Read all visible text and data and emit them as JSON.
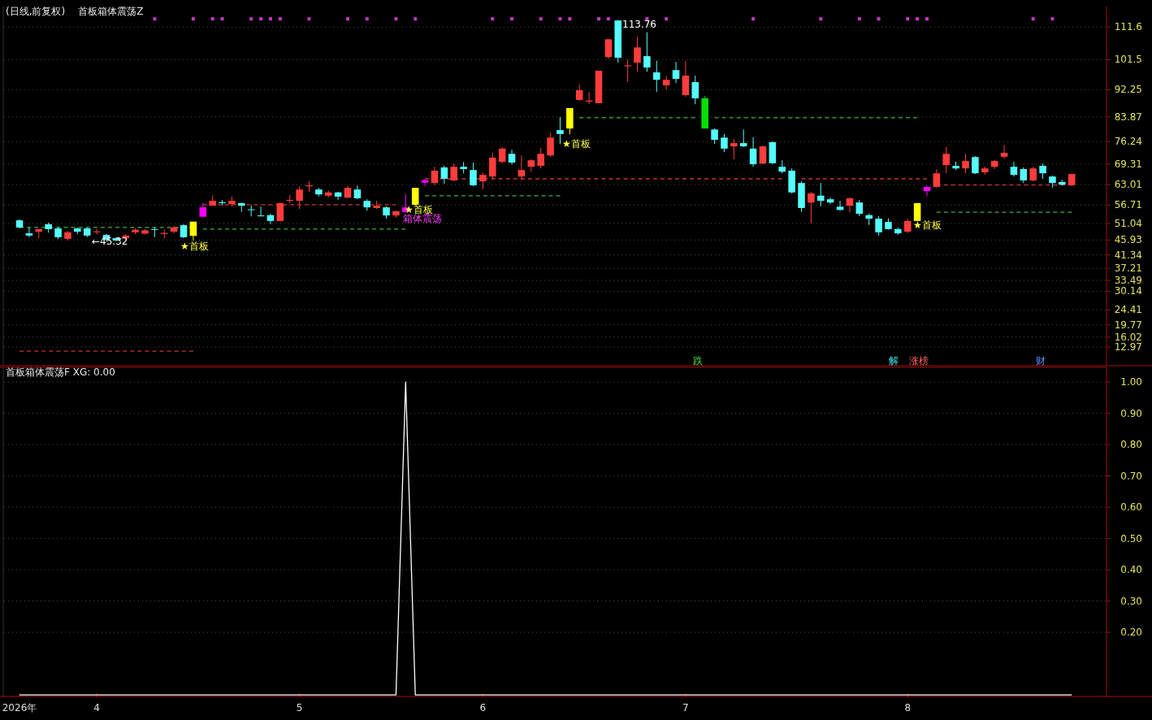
{
  "chart_data": [
    {
      "type": "candlestick",
      "subtitle": "(日线,前复权)",
      "title": "首板箱体震荡Z",
      "ohlc": [
        [
          52.0,
          52.3,
          49.5,
          49.8
        ],
        [
          48.0,
          49.8,
          46.8,
          47.3
        ],
        [
          48.5,
          49.3,
          46.5,
          49.3
        ],
        [
          50.8,
          51.3,
          48.2,
          49.3
        ],
        [
          49.5,
          50.0,
          46.3,
          46.8
        ],
        [
          46.3,
          48.8,
          45.8,
          48.3
        ],
        [
          49.5,
          49.8,
          47.7,
          48.5
        ],
        [
          49.5,
          49.8,
          46.8,
          47.3
        ],
        [
          48.4,
          49.3,
          47.7,
          48.6
        ],
        [
          47.5,
          47.8,
          45.32,
          46.0
        ],
        [
          46.5,
          46.8,
          45.5,
          45.8
        ],
        [
          46.5,
          47.8,
          45.8,
          47.3
        ],
        [
          48.3,
          49.6,
          47.7,
          49.1
        ],
        [
          47.9,
          49.3,
          47.7,
          48.9
        ],
        [
          49.3,
          49.8,
          46.8,
          49.1
        ],
        [
          47.8,
          49.1,
          46.5,
          48.1
        ],
        [
          48.5,
          50.3,
          48.0,
          49.8
        ],
        [
          50.5,
          50.8,
          46.5,
          46.8
        ],
        [
          47.2,
          51.6,
          45.7,
          51.6
        ],
        [
          53.1,
          57.3,
          53.1,
          56.0
        ],
        [
          56.5,
          59.7,
          56.5,
          58.0
        ],
        [
          57.6,
          58.3,
          56.6,
          57.3
        ],
        [
          57.0,
          59.3,
          56.3,
          58.0
        ],
        [
          57.3,
          57.5,
          54.6,
          56.5
        ],
        [
          55.4,
          56.6,
          53.2,
          55.2
        ],
        [
          53.5,
          56.2,
          53.2,
          53.3
        ],
        [
          53.6,
          54.0,
          50.8,
          51.8
        ],
        [
          51.8,
          57.5,
          51.6,
          57.3
        ],
        [
          58.0,
          59.8,
          57.3,
          58.3
        ],
        [
          58.0,
          62.5,
          55.5,
          61.5
        ],
        [
          62.5,
          64.0,
          60.8,
          62.8
        ],
        [
          61.5,
          62.0,
          59.4,
          60.0
        ],
        [
          59.6,
          61.2,
          59.0,
          60.6
        ],
        [
          60.6,
          60.8,
          58.3,
          59.3
        ],
        [
          59.0,
          62.7,
          58.8,
          62.0
        ],
        [
          61.5,
          62.7,
          58.5,
          58.8
        ],
        [
          58.0,
          58.5,
          55.0,
          56.0
        ],
        [
          55.8,
          58.0,
          55.5,
          56.5
        ],
        [
          56.0,
          56.3,
          52.5,
          53.5
        ],
        [
          53.5,
          55.0,
          52.8,
          54.8
        ],
        [
          54.6,
          60.0,
          54.4,
          56.0
        ],
        [
          56.8,
          62.0,
          56.4,
          62.0
        ],
        [
          63.6,
          64.8,
          62.5,
          64.4
        ],
        [
          63.5,
          68.5,
          62.8,
          67.3
        ],
        [
          68.3,
          68.8,
          63.3,
          64.8
        ],
        [
          64.3,
          69.5,
          64.0,
          68.5
        ],
        [
          68.5,
          70.0,
          66.5,
          67.8
        ],
        [
          67.5,
          69.8,
          62.5,
          62.8
        ],
        [
          64.0,
          66.7,
          61.5,
          66.0
        ],
        [
          65.5,
          72.8,
          64.8,
          71.3
        ],
        [
          70.0,
          74.6,
          69.5,
          74.1
        ],
        [
          72.5,
          73.8,
          69.2,
          69.8
        ],
        [
          65.5,
          72.0,
          64.5,
          67.5
        ],
        [
          68.5,
          70.8,
          67.0,
          70.5
        ],
        [
          68.8,
          74.3,
          68.0,
          72.5
        ],
        [
          72.0,
          79.0,
          71.6,
          77.5
        ],
        [
          79.8,
          83.8,
          75.5,
          78.6
        ],
        [
          80.3,
          86.6,
          78.5,
          86.6
        ],
        [
          89.1,
          93.8,
          88.8,
          92.1
        ],
        [
          88.6,
          91.5,
          87.8,
          88.9
        ],
        [
          88.1,
          98.1,
          88.1,
          98.1
        ],
        [
          102.3,
          108.0,
          101.8,
          107.8
        ],
        [
          113.6,
          113.76,
          100.6,
          102.1
        ],
        [
          99.5,
          101.6,
          94.7,
          99.8
        ],
        [
          100.6,
          108.5,
          97.8,
          105.3
        ],
        [
          102.6,
          110.0,
          97.8,
          99.1
        ],
        [
          97.6,
          101.2,
          91.6,
          95.3
        ],
        [
          93.6,
          96.5,
          92.3,
          95.3
        ],
        [
          98.3,
          100.8,
          94.3,
          95.6
        ],
        [
          90.6,
          101.2,
          90.1,
          96.6
        ],
        [
          94.6,
          96.6,
          87.8,
          89.6
        ],
        [
          89.6,
          90.3,
          80.3,
          80.3
        ],
        [
          80.0,
          80.3,
          75.5,
          76.8
        ],
        [
          77.5,
          78.6,
          73.0,
          74.1
        ],
        [
          74.8,
          77.1,
          70.8,
          75.8
        ],
        [
          75.8,
          80.0,
          74.6,
          74.8
        ],
        [
          74.1,
          77.6,
          68.5,
          69.3
        ],
        [
          69.5,
          75.0,
          69.3,
          74.8
        ],
        [
          76.1,
          76.3,
          69.3,
          69.6
        ],
        [
          68.5,
          70.5,
          66.5,
          67.0
        ],
        [
          67.3,
          68.0,
          60.3,
          60.6
        ],
        [
          63.5,
          64.0,
          54.6,
          55.8
        ],
        [
          57.5,
          60.8,
          51.0,
          60.3
        ],
        [
          59.6,
          63.5,
          56.3,
          58.0
        ],
        [
          58.5,
          59.0,
          57.0,
          57.5
        ],
        [
          56.2,
          58.0,
          55.0,
          55.2
        ],
        [
          56.5,
          59.0,
          54.5,
          58.8
        ],
        [
          57.5,
          58.3,
          53.3,
          54.0
        ],
        [
          53.6,
          54.1,
          50.6,
          52.5
        ],
        [
          52.5,
          53.3,
          47.3,
          48.3
        ],
        [
          51.5,
          52.6,
          49.1,
          49.3
        ],
        [
          49.3,
          49.8,
          47.5,
          48.0
        ],
        [
          48.5,
          52.5,
          48.1,
          51.8
        ],
        [
          51.8,
          57.3,
          51.8,
          57.3
        ],
        [
          61.0,
          62.7,
          59.4,
          62.3
        ],
        [
          62.3,
          67.8,
          62.1,
          66.5
        ],
        [
          69.0,
          74.6,
          66.5,
          72.5
        ],
        [
          68.8,
          70.1,
          67.5,
          68.0
        ],
        [
          68.0,
          72.5,
          66.6,
          70.3
        ],
        [
          71.5,
          71.8,
          66.3,
          66.5
        ],
        [
          66.8,
          68.6,
          66.0,
          68.0
        ],
        [
          68.5,
          70.6,
          67.8,
          70.3
        ],
        [
          71.6,
          75.2,
          71.0,
          72.8
        ],
        [
          68.5,
          70.0,
          65.5,
          66.0
        ],
        [
          67.8,
          68.3,
          63.5,
          64.3
        ],
        [
          64.3,
          68.5,
          64.0,
          68.0
        ],
        [
          68.8,
          69.5,
          64.8,
          66.5
        ],
        [
          65.5,
          65.8,
          62.1,
          63.5
        ],
        [
          63.8,
          64.5,
          62.8,
          63.0
        ],
        [
          62.8,
          66.3,
          62.6,
          66.3
        ]
      ],
      "colors": [
        "#54fcfc",
        "#54fcfc",
        "#ff3c3c",
        "#54fcfc",
        "#54fcfc",
        "#ff3c3c",
        "#54fcfc",
        "#54fcfc",
        "#ff3c3c",
        "#54fcfc",
        "#54fcfc",
        "#ff3c3c",
        "#ff3c3c",
        "#ff3c3c",
        "#54fcfc",
        "#ff3c3c",
        "#ff3c3c",
        "#54fcfc",
        "#ffff00",
        "#ff00ff",
        "#ff3c3c",
        "#54fcfc",
        "#ff3c3c",
        "#54fcfc",
        "#54fcfc",
        "#54fcfc",
        "#54fcfc",
        "#ff3c3c",
        "#ff3c3c",
        "#ff3c3c",
        "#ff3c3c",
        "#54fcfc",
        "#ff3c3c",
        "#54fcfc",
        "#ff3c3c",
        "#54fcfc",
        "#54fcfc",
        "#ff3c3c",
        "#54fcfc",
        "#ff3c3c",
        "#ff00ff",
        "#ffff00",
        "#ff00ff",
        "#ff3c3c",
        "#54fcfc",
        "#ff3c3c",
        "#54fcfc",
        "#54fcfc",
        "#ff3c3c",
        "#ff3c3c",
        "#ff3c3c",
        "#54fcfc",
        "#ff3c3c",
        "#ff3c3c",
        "#ff3c3c",
        "#ff3c3c",
        "#54fcfc",
        "#ffff00",
        "#ff3c3c",
        "#ff3c3c",
        "#ff3c3c",
        "#ff3c3c",
        "#54fcfc",
        "#ff3c3c",
        "#ff3c3c",
        "#54fcfc",
        "#54fcfc",
        "#ff3c3c",
        "#54fcfc",
        "#ff3c3c",
        "#54fcfc",
        "#00e000",
        "#54fcfc",
        "#54fcfc",
        "#ff3c3c",
        "#54fcfc",
        "#54fcfc",
        "#ff3c3c",
        "#54fcfc",
        "#54fcfc",
        "#54fcfc",
        "#54fcfc",
        "#ff3c3c",
        "#54fcfc",
        "#54fcfc",
        "#54fcfc",
        "#ff3c3c",
        "#54fcfc",
        "#54fcfc",
        "#54fcfc",
        "#54fcfc",
        "#54fcfc",
        "#ff3c3c",
        "#ffff00",
        "#ff00ff",
        "#ff3c3c",
        "#ff3c3c",
        "#54fcfc",
        "#ff3c3c",
        "#54fcfc",
        "#ff3c3c",
        "#ff3c3c",
        "#ff3c3c",
        "#54fcfc",
        "#54fcfc",
        "#ff3c3c",
        "#54fcfc",
        "#54fcfc",
        "#54fcfc",
        "#ff3c3c"
      ],
      "series": [
        {
          "type": "line",
          "color": "#3cb043",
          "line_style": "dashed",
          "values": [
            49.8,
            49.8,
            49.8,
            49.8,
            49.8,
            49.8,
            49.8,
            49.8,
            49.8,
            49.8,
            49.8,
            49.8,
            49.8,
            49.8,
            49.8,
            49.8,
            49.8,
            49.8,
            49.8,
            null,
            null,
            null,
            null,
            null,
            null,
            null,
            null,
            null,
            null,
            null,
            null,
            null,
            null,
            null,
            null,
            null,
            null,
            null,
            null,
            null,
            null,
            null,
            null,
            null,
            null,
            null,
            null,
            null,
            null,
            null,
            null,
            null,
            null,
            null,
            null,
            null,
            null,
            null,
            null,
            null,
            null,
            null,
            null,
            null,
            null,
            null,
            null,
            null,
            null,
            null,
            null,
            null,
            null,
            null,
            null,
            null,
            null,
            null,
            null,
            null,
            null,
            null,
            null,
            null,
            null,
            null,
            null,
            null,
            null,
            null,
            null,
            null,
            null,
            null,
            null,
            null,
            null,
            null,
            null,
            null,
            null,
            null,
            null,
            null,
            null,
            null,
            null,
            null,
            null,
            null
          ]
        },
        {
          "type": "line",
          "color": "#3cb043",
          "line_style": "dashed",
          "values": [
            null,
            null,
            null,
            null,
            null,
            null,
            null,
            null,
            null,
            null,
            null,
            null,
            null,
            null,
            null,
            null,
            null,
            null,
            null,
            49.3,
            49.3,
            49.3,
            49.3,
            49.3,
            49.3,
            49.3,
            49.3,
            49.3,
            49.3,
            49.3,
            49.3,
            49.3,
            49.3,
            49.3,
            49.3,
            49.3,
            49.3,
            49.3,
            49.3,
            49.3,
            49.3,
            null,
            null,
            null,
            null,
            null,
            null,
            null,
            null,
            null,
            null,
            null,
            null,
            null,
            null,
            null,
            null,
            null,
            null,
            null,
            null,
            null,
            null,
            null,
            null,
            null,
            null,
            null,
            null,
            null,
            null,
            null,
            null,
            null,
            null,
            null,
            null,
            null,
            null,
            null,
            null,
            null,
            null,
            null,
            null,
            null,
            null,
            null,
            null,
            null,
            null,
            null,
            null,
            null,
            null,
            null,
            null,
            null,
            null,
            null,
            null,
            null,
            null,
            null,
            null,
            null,
            null,
            null,
            null,
            null
          ]
        },
        {
          "type": "line",
          "color": "#c83232",
          "line_style": "dashed",
          "values": [
            null,
            null,
            null,
            null,
            null,
            null,
            null,
            null,
            null,
            null,
            null,
            null,
            null,
            null,
            null,
            null,
            null,
            null,
            null,
            56.8,
            56.8,
            56.8,
            56.8,
            56.8,
            56.8,
            56.8,
            56.8,
            56.8,
            56.8,
            56.8,
            56.8,
            56.8,
            56.8,
            56.8,
            56.8,
            56.8,
            56.8,
            56.8,
            56.8,
            56.8,
            null,
            null,
            null,
            null,
            null,
            null,
            null,
            null,
            null,
            null,
            null,
            null,
            null,
            null,
            null,
            null,
            null,
            null,
            null,
            null,
            null,
            null,
            null,
            null,
            null,
            null,
            null,
            null,
            null,
            null,
            null,
            null,
            null,
            null,
            null,
            null,
            null,
            null,
            null,
            null,
            null,
            null,
            null,
            null,
            null,
            null,
            null,
            null,
            null,
            null,
            null,
            null,
            null,
            null,
            null,
            null,
            null,
            null,
            null,
            null,
            null,
            null,
            null,
            null,
            null,
            null,
            null,
            null,
            null,
            null
          ]
        },
        {
          "type": "line",
          "color": "#3cb043",
          "line_style": "dashed",
          "values": [
            null,
            null,
            null,
            null,
            null,
            null,
            null,
            null,
            null,
            null,
            null,
            null,
            null,
            null,
            null,
            null,
            null,
            null,
            null,
            null,
            null,
            null,
            null,
            null,
            null,
            null,
            null,
            null,
            null,
            null,
            null,
            null,
            null,
            null,
            null,
            null,
            null,
            null,
            null,
            null,
            null,
            null,
            59.6,
            59.6,
            59.6,
            59.6,
            59.6,
            59.6,
            59.6,
            59.6,
            59.6,
            59.6,
            59.6,
            59.6,
            59.6,
            59.6,
            59.6,
            null,
            null,
            null,
            null,
            null,
            null,
            null,
            null,
            null,
            null,
            null,
            null,
            null,
            null,
            null,
            null,
            null,
            null,
            null,
            null,
            null,
            null,
            null,
            null,
            null,
            null,
            null,
            null,
            null,
            null,
            null,
            null,
            null,
            null,
            null,
            null,
            null,
            null,
            null,
            null,
            null,
            null,
            null,
            null,
            null,
            null,
            null,
            null,
            null,
            null,
            null,
            null,
            null
          ]
        },
        {
          "type": "line",
          "color": "#c83232",
          "line_style": "dashed",
          "values": [
            null,
            null,
            null,
            null,
            null,
            null,
            null,
            null,
            null,
            null,
            null,
            null,
            null,
            null,
            null,
            null,
            null,
            null,
            null,
            null,
            null,
            null,
            null,
            null,
            null,
            null,
            null,
            null,
            null,
            null,
            null,
            null,
            null,
            null,
            null,
            null,
            null,
            null,
            null,
            null,
            null,
            null,
            64.8,
            64.8,
            64.8,
            64.8,
            64.8,
            64.8,
            64.8,
            64.8,
            64.8,
            64.8,
            64.8,
            64.8,
            64.8,
            64.8,
            64.8,
            64.8,
            64.8,
            64.8,
            64.8,
            64.8,
            64.8,
            64.8,
            64.8,
            64.8,
            64.8,
            64.8,
            64.8,
            64.8,
            64.8,
            64.8,
            64.8,
            64.8,
            64.8,
            64.8,
            64.8,
            64.8,
            64.8,
            64.8,
            null,
            64.8,
            64.8,
            64.8,
            64.8,
            64.8,
            64.8,
            64.8,
            64.8,
            64.8,
            64.8,
            64.8,
            64.8,
            64.8,
            64.8,
            null,
            null,
            null,
            null,
            null,
            null,
            null,
            null,
            null,
            null,
            null,
            null,
            null,
            null,
            null
          ]
        },
        {
          "type": "line",
          "color": "#3cb043",
          "line_style": "dashed",
          "values": [
            null,
            null,
            null,
            null,
            null,
            null,
            null,
            null,
            null,
            null,
            null,
            null,
            null,
            null,
            null,
            null,
            null,
            null,
            null,
            null,
            null,
            null,
            null,
            null,
            null,
            null,
            null,
            null,
            null,
            null,
            null,
            null,
            null,
            null,
            null,
            null,
            null,
            null,
            null,
            null,
            null,
            null,
            null,
            null,
            null,
            null,
            null,
            null,
            null,
            null,
            null,
            null,
            null,
            null,
            null,
            null,
            null,
            null,
            83.6,
            83.6,
            83.6,
            83.6,
            83.6,
            83.6,
            83.6,
            83.6,
            83.6,
            83.6,
            83.6,
            83.6,
            83.6,
            null,
            83.6,
            83.6,
            83.6,
            83.6,
            83.6,
            83.6,
            83.6,
            83.6,
            83.6,
            83.6,
            83.6,
            83.6,
            83.6,
            83.6,
            83.6,
            83.6,
            83.6,
            83.6,
            83.6,
            83.6,
            83.6,
            83.6,
            null,
            null,
            null,
            null,
            null,
            null,
            null,
            null,
            null,
            null,
            null,
            null,
            null,
            null,
            null,
            null
          ]
        },
        {
          "type": "line",
          "color": "#c83232",
          "line_style": "dashed",
          "values": [
            null,
            null,
            null,
            null,
            null,
            null,
            null,
            null,
            null,
            null,
            null,
            null,
            null,
            null,
            null,
            null,
            null,
            null,
            null,
            null,
            null,
            null,
            null,
            null,
            null,
            null,
            null,
            null,
            null,
            null,
            null,
            null,
            null,
            null,
            null,
            null,
            null,
            null,
            null,
            null,
            null,
            null,
            null,
            null,
            null,
            null,
            null,
            null,
            null,
            null,
            null,
            null,
            null,
            null,
            null,
            null,
            null,
            null,
            null,
            null,
            null,
            null,
            null,
            null,
            null,
            null,
            null,
            null,
            null,
            null,
            null,
            null,
            null,
            null,
            null,
            null,
            null,
            null,
            null,
            null,
            null,
            null,
            null,
            null,
            null,
            null,
            null,
            null,
            null,
            null,
            null,
            null,
            null,
            null,
            null,
            62.9,
            62.9,
            62.9,
            62.9,
            62.9,
            62.9,
            62.9,
            62.9,
            62.9,
            62.9,
            62.9,
            62.9,
            62.9,
            62.9,
            62.9
          ]
        },
        {
          "type": "line",
          "color": "#3cb043",
          "line_style": "dashed",
          "values": [
            null,
            null,
            null,
            null,
            null,
            null,
            null,
            null,
            null,
            null,
            null,
            null,
            null,
            null,
            null,
            null,
            null,
            null,
            null,
            null,
            null,
            null,
            null,
            null,
            null,
            null,
            null,
            null,
            null,
            null,
            null,
            null,
            null,
            null,
            null,
            null,
            null,
            null,
            null,
            null,
            null,
            null,
            null,
            null,
            null,
            null,
            null,
            null,
            null,
            null,
            null,
            null,
            null,
            null,
            null,
            null,
            null,
            null,
            null,
            null,
            null,
            null,
            null,
            null,
            null,
            null,
            null,
            null,
            null,
            null,
            null,
            null,
            null,
            null,
            null,
            null,
            null,
            null,
            null,
            null,
            null,
            null,
            null,
            null,
            null,
            null,
            null,
            null,
            null,
            null,
            null,
            null,
            null,
            null,
            null,
            54.5,
            54.5,
            54.5,
            54.5,
            54.5,
            54.5,
            54.5,
            54.5,
            54.5,
            54.5,
            54.5,
            54.5,
            54.5,
            54.5,
            54.5
          ]
        },
        {
          "type": "line",
          "color": "#c83232",
          "line_style": "dashed",
          "values": [
            11.7,
            11.7,
            11.7,
            11.7,
            11.7,
            11.7,
            11.7,
            11.7,
            11.7,
            11.7,
            11.7,
            11.7,
            11.7,
            11.7,
            11.7,
            11.7,
            11.7,
            11.7,
            11.7,
            null,
            null,
            null,
            null,
            null,
            null,
            null,
            null,
            null,
            null,
            null,
            null,
            null,
            null,
            null,
            null,
            null,
            null,
            null,
            null,
            null,
            null,
            null,
            null,
            null,
            null,
            null,
            null,
            null,
            null,
            null,
            null,
            null,
            null,
            null,
            null,
            null,
            null,
            null,
            null,
            null,
            null,
            null,
            null,
            null,
            null,
            null,
            null,
            null,
            null,
            null,
            null,
            null,
            null,
            null,
            null,
            null,
            null,
            null,
            null,
            null,
            null,
            null,
            null,
            null,
            null,
            null,
            null,
            null,
            null,
            null,
            null,
            null,
            null,
            null,
            null,
            null,
            null,
            null,
            null,
            null,
            null,
            null,
            null,
            null,
            null,
            null,
            null,
            null,
            null,
            null
          ]
        },
        {
          "type": "scatter",
          "color": "#cc33cc",
          "marker": "square",
          "values": [
            null,
            null,
            null,
            null,
            null,
            null,
            null,
            null,
            null,
            null,
            null,
            null,
            null,
            null,
            114.1,
            null,
            null,
            null,
            114.1,
            null,
            114.1,
            114.1,
            null,
            null,
            114.1,
            114.1,
            114.1,
            114.1,
            null,
            null,
            114.1,
            null,
            null,
            null,
            114.1,
            null,
            114.1,
            null,
            null,
            114.1,
            null,
            114.1,
            null,
            null,
            null,
            null,
            null,
            null,
            null,
            114.1,
            null,
            114.1,
            null,
            null,
            114.1,
            null,
            114.1,
            114.1,
            null,
            null,
            114.1,
            114.1,
            null,
            null,
            null,
            114.1,
            null,
            114.1,
            null,
            null,
            null,
            null,
            null,
            null,
            null,
            null,
            114.1,
            null,
            null,
            null,
            null,
            null,
            null,
            114.1,
            null,
            null,
            null,
            114.1,
            null,
            114.1,
            null,
            null,
            114.1,
            114.1,
            114.1,
            null,
            null,
            null,
            null,
            null,
            null,
            null,
            null,
            null,
            null,
            114.1,
            null,
            114.1,
            null,
            null
          ]
        }
      ],
      "annotations": [
        "←45.32",
        "113.76",
        "★首板",
        "★首板",
        "★首板",
        "★首板",
        "箱体震荡",
        "跌",
        "解",
        "涨榜",
        "财"
      ],
      "ylim": [
        7.2,
        117.9
      ],
      "yticks": [
        12.97,
        16.02,
        19.77,
        24.41,
        30.14,
        33.49,
        37.21,
        41.34,
        45.93,
        51.04,
        56.71,
        63.01,
        69.31,
        76.24,
        83.87,
        92.25,
        101.5,
        111.6
      ],
      "grid": "y",
      "tick_labels": "y"
    },
    {
      "type": "line",
      "title": "首板箱体震荡F XG: 0.00",
      "categories": [
        "2026年",
        null,
        null,
        null,
        null,
        null,
        null,
        null,
        "4",
        null,
        null,
        null,
        null,
        null,
        null,
        null,
        null,
        null,
        null,
        null,
        null,
        null,
        null,
        null,
        null,
        null,
        null,
        null,
        null,
        "5",
        null,
        null,
        null,
        null,
        null,
        null,
        null,
        null,
        null,
        null,
        null,
        null,
        null,
        null,
        null,
        null,
        null,
        null,
        "6",
        null,
        null,
        null,
        null,
        null,
        null,
        null,
        null,
        null,
        null,
        null,
        null,
        null,
        null,
        null,
        null,
        null,
        null,
        null,
        null,
        "7",
        null,
        null,
        null,
        null,
        null,
        null,
        null,
        null,
        null,
        null,
        null,
        null,
        null,
        null,
        null,
        null,
        null,
        null,
        null,
        null,
        null,
        null,
        "8",
        null,
        null,
        null,
        null,
        null,
        null,
        null,
        null,
        null,
        null,
        null,
        null,
        null,
        null,
        null,
        null,
        null
      ],
      "series": [
        {
          "color": "#ffffff",
          "values": [
            0,
            0,
            0,
            0,
            0,
            0,
            0,
            0,
            0,
            0,
            0,
            0,
            0,
            0,
            0,
            0,
            0,
            0,
            0,
            0,
            0,
            0,
            0,
            0,
            0,
            0,
            0,
            0,
            0,
            0,
            0,
            0,
            0,
            0,
            0,
            0,
            0,
            0,
            0,
            0,
            1,
            0,
            0,
            0,
            0,
            0,
            0,
            0,
            0,
            0,
            0,
            0,
            0,
            0,
            0,
            0,
            0,
            0,
            0,
            0,
            0,
            0,
            0,
            0,
            0,
            0,
            0,
            0,
            0,
            0,
            0,
            0,
            0,
            0,
            0,
            0,
            0,
            0,
            0,
            0,
            0,
            0,
            0,
            0,
            0,
            0,
            0,
            0,
            0,
            0,
            0,
            0,
            0,
            0,
            0,
            0,
            0,
            0,
            0,
            0,
            0,
            0,
            0,
            0,
            0,
            0,
            0,
            0,
            0,
            0
          ]
        }
      ],
      "ylim": [
        -0.005,
        1.047
      ],
      "yticks": [
        {
          "value": 0.2,
          "label": "0.20"
        },
        {
          "value": 0.3,
          "label": "0.30"
        },
        {
          "value": 0.4,
          "label": "0.40"
        },
        {
          "value": 0.5,
          "label": "0.50"
        },
        {
          "value": 0.6,
          "label": "0.60"
        },
        {
          "value": 0.7,
          "label": "0.70"
        },
        {
          "value": 0.8,
          "label": "0.80"
        },
        {
          "value": 0.9,
          "label": "0.90"
        },
        {
          "value": 1,
          "label": "1.00"
        }
      ],
      "grid": "y"
    }
  ]
}
